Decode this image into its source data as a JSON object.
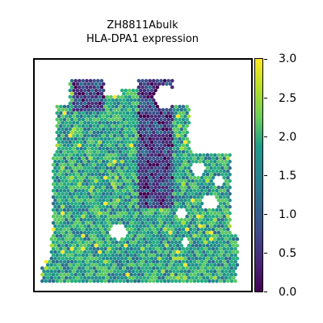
{
  "chart_data": {
    "type": "scatter",
    "title": "ZH8811Abulk",
    "subtitle": "HLA-DPA1 expression",
    "colorbar": {
      "min": 0.0,
      "max": 3.0,
      "ticks": [
        "0.0",
        "0.5",
        "1.0",
        "1.5",
        "2.0",
        "2.5",
        "3.0"
      ],
      "colormap": "viridis"
    },
    "legend": "right colorbar",
    "grid": false
  }
}
